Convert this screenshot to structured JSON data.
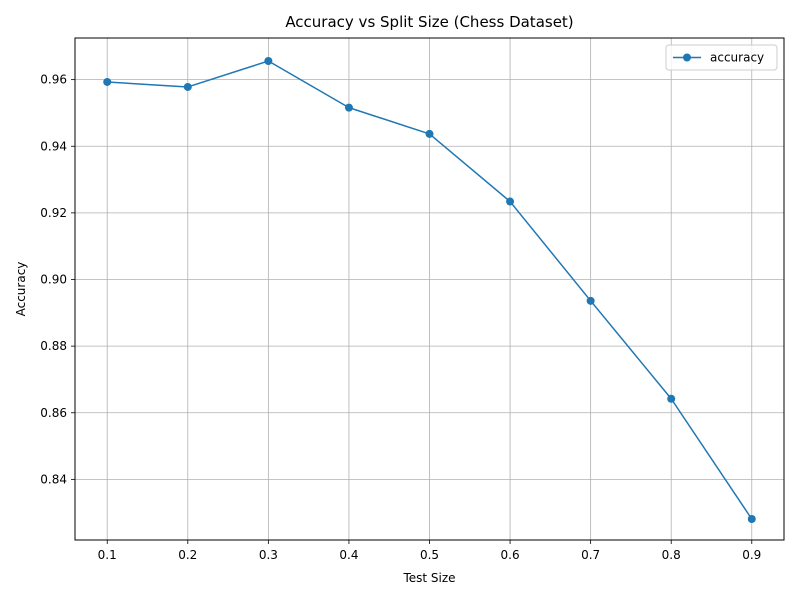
{
  "chart_data": {
    "type": "line",
    "title": "Accuracy vs Split Size (Chess Dataset)",
    "xlabel": "Test Size",
    "ylabel": "Accuracy",
    "xlim": [
      0.06,
      0.94
    ],
    "ylim": [
      0.8218,
      0.9725
    ],
    "xticks": [
      0.1,
      0.2,
      0.3,
      0.4,
      0.5,
      0.6,
      0.7,
      0.8,
      0.9
    ],
    "xtick_labels": [
      "0.1",
      "0.2",
      "0.3",
      "0.4",
      "0.5",
      "0.6",
      "0.7",
      "0.8",
      "0.9"
    ],
    "yticks": [
      0.84,
      0.86,
      0.88,
      0.9,
      0.92,
      0.94,
      0.96
    ],
    "ytick_labels": [
      "0.84",
      "0.86",
      "0.88",
      "0.90",
      "0.92",
      "0.94",
      "0.96"
    ],
    "grid": true,
    "legend_position": "top-right",
    "series": [
      {
        "name": "accuracy",
        "color": "#1f77b4",
        "marker": "circle",
        "x": [
          0.1,
          0.2,
          0.3,
          0.4,
          0.5,
          0.6,
          0.7,
          0.8,
          0.9
        ],
        "y": [
          0.9593,
          0.9578,
          0.9656,
          0.9516,
          0.9437,
          0.9234,
          0.8936,
          0.8642,
          0.8281
        ]
      }
    ]
  }
}
